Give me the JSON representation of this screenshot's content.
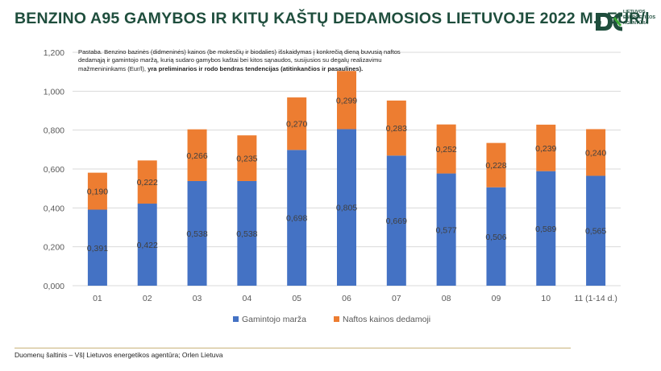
{
  "header": {
    "title": "BENZINO A95 GAMYBOS IR KITŲ KAŠTŲ DEDAMOSIOS LIETUVOJE 2022 M., EUR/l",
    "logo_lines": [
      "LIETUVOS",
      "ENERGETIKOS",
      "AGENTŪRA"
    ]
  },
  "note": {
    "text_plain": "Pastaba. Benzino bazinės (didmeninės) kainos (be mokesčių ir biodalies) išskaidymas į konkrečią dieną buvusią naftos dedamąją ir gamintojo maržą, kurią sudaro gamybos kaštai bei kitos sąnaudos, susijusios su degalų realizavimu mažmenininkams (Eur/l), ",
    "text_bold": "yra preliminarios ir rodo bendras tendencijas (atitinkančios ir pasaulines)."
  },
  "footer": {
    "source": "Duomenų šaltinis – VšĮ Lietuvos energetikos agentūra; Orlen Lietuva"
  },
  "colors": {
    "producer_margin": "#4472c4",
    "oil_component": "#ed7d31",
    "title": "#1f4e3d",
    "logo": "#1f4e3d"
  },
  "chart_data": {
    "type": "bar",
    "stacked": true,
    "title": "BENZINO A95 GAMYBOS IR KITŲ KAŠTŲ DEDAMOSIOS LIETUVOJE 2022 M., EUR/l",
    "categories": [
      "01",
      "02",
      "03",
      "04",
      "05",
      "06",
      "07",
      "08",
      "09",
      "10",
      "11 (1-14 d.)"
    ],
    "series": [
      {
        "name": "Gamintojo marža",
        "values": [
          0.391,
          0.422,
          0.538,
          0.538,
          0.698,
          0.805,
          0.669,
          0.577,
          0.506,
          0.589,
          0.565
        ],
        "labels": [
          "0,391",
          "0,422",
          "0,538",
          "0,538",
          "0,698",
          "0,805",
          "0,669",
          "0,577",
          "0,506",
          "0,589",
          "0,565"
        ]
      },
      {
        "name": "Naftos kainos dedamoji",
        "values": [
          0.19,
          0.222,
          0.266,
          0.235,
          0.27,
          0.299,
          0.283,
          0.252,
          0.228,
          0.239,
          0.24
        ],
        "labels": [
          "0,190",
          "0,222",
          "0,266",
          "0,235",
          "0,270",
          "0,299",
          "0,283",
          "0,252",
          "0,228",
          "0,239",
          "0,240"
        ]
      }
    ],
    "ylim": [
      0,
      1.2
    ],
    "yticks": [
      0,
      0.2,
      0.4,
      0.6,
      0.8,
      1.0,
      1.2
    ],
    "ytick_labels": [
      "0,000",
      "0,200",
      "0,400",
      "0,600",
      "0,800",
      "1,000",
      "1,200"
    ],
    "xlabel": "",
    "ylabel": "",
    "grid": true,
    "legend": "bottom"
  }
}
